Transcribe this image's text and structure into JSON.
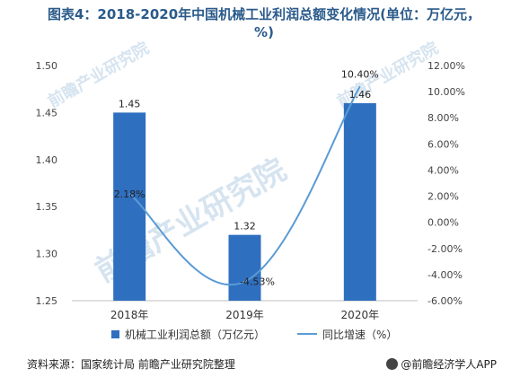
{
  "title": "图表4：2018-2020年中国机械工业利润总额变化情况(单位：万亿元，%)",
  "source": "资料来源：国家统计局 前瞻产业研究院整理",
  "brand": "@前瞻经济学人APP",
  "watermark": "前瞻产业研究院",
  "chart_data": {
    "type": "bar",
    "categories": [
      "2018年",
      "2019年",
      "2020年"
    ],
    "series": [
      {
        "name": "机械工业利润总额（万亿元）",
        "kind": "bar",
        "axis": "left",
        "values": [
          1.45,
          1.32,
          1.46
        ],
        "labels": [
          "1.45",
          "1.32",
          "1.46"
        ],
        "color": "#2f6fbf"
      },
      {
        "name": "同比增速（%）",
        "kind": "line",
        "axis": "right",
        "values": [
          2.18,
          -4.53,
          10.4
        ],
        "labels": [
          "2.18%",
          "-4.53%",
          "10.40%"
        ],
        "color": "#5b9bd5"
      }
    ],
    "y_left": {
      "min": 1.25,
      "max": 1.5,
      "ticks": [
        "1.25",
        "1.30",
        "1.35",
        "1.40",
        "1.45",
        "1.50"
      ]
    },
    "y_right": {
      "min": -6,
      "max": 12,
      "ticks": [
        "-6.00%",
        "-4.00%",
        "-2.00%",
        "0.00%",
        "2.00%",
        "4.00%",
        "6.00%",
        "8.00%",
        "10.00%",
        "12.00%"
      ]
    },
    "legend_position": "bottom",
    "grid": false
  }
}
